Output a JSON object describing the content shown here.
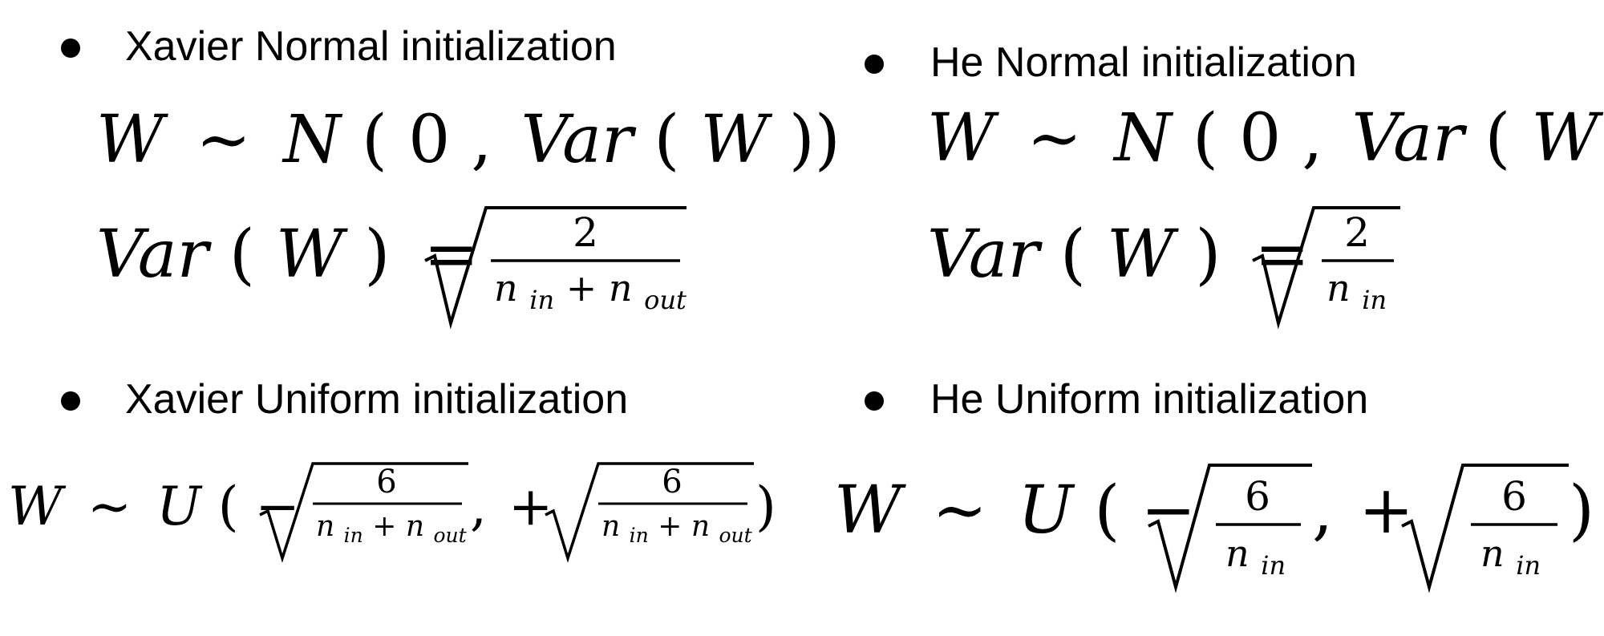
{
  "sections": {
    "xavier_normal": {
      "heading": "Xavier Normal initialization",
      "dist_lhs": "W",
      "dist_sim": "∼",
      "dist_name": "N",
      "dist_open": "(",
      "zero": "0",
      "comma": ",",
      "var_name": "Var",
      "var_open": "(",
      "var_arg": "W",
      "var_close": "))",
      "var2_name": "Var",
      "var2_open": "(",
      "var2_arg": "W",
      "var2_close": ")",
      "equals": "=",
      "numerator": "2",
      "den_n1": "n",
      "den_s1": "in",
      "den_plus": "+",
      "den_n2": "n",
      "den_s2": "out"
    },
    "he_normal": {
      "heading": "He Normal initialization",
      "dist_lhs": "W",
      "dist_sim": "∼",
      "dist_name": "N",
      "dist_open": "(",
      "zero": "0",
      "comma": ",",
      "var_name": "Var",
      "var_open": "(",
      "var_arg": "W",
      "var_close": "))",
      "var2_name": "Var",
      "var2_open": "(",
      "var2_arg": "W",
      "var2_close": ")",
      "equals": "=",
      "numerator": "2",
      "den_n1": "n",
      "den_s1": "in"
    },
    "xavier_uniform": {
      "heading": "Xavier Uniform initialization",
      "lhs": "W",
      "sim": "∼",
      "dist_name": "U",
      "open": "(",
      "minus": "−",
      "sep": ",",
      "plus": "+",
      "close": ")",
      "num1": "6",
      "d1_n1": "n",
      "d1_s1": "in",
      "d1_plus": "+",
      "d1_n2": "n",
      "d1_s2": "out",
      "num2": "6",
      "d2_n1": "n",
      "d2_s1": "in",
      "d2_plus": "+",
      "d2_n2": "n",
      "d2_s2": "out"
    },
    "he_uniform": {
      "heading": "He Uniform initialization",
      "lhs": "W",
      "sim": "∼",
      "dist_name": "U",
      "open": "(",
      "minus": "−",
      "sep": ",",
      "plus": "+",
      "close": ")",
      "num1": "6",
      "d1_n1": "n",
      "d1_s1": "in",
      "num2": "6",
      "d2_n1": "n",
      "d2_s1": "in"
    }
  }
}
